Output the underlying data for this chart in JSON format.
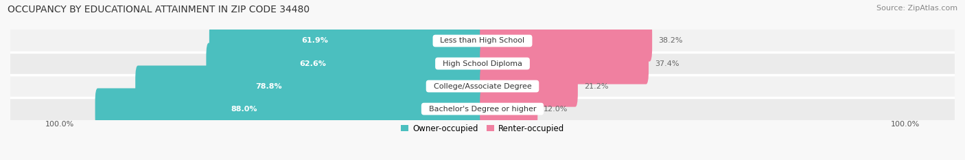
{
  "title": "OCCUPANCY BY EDUCATIONAL ATTAINMENT IN ZIP CODE 34480",
  "source": "Source: ZipAtlas.com",
  "categories": [
    "Less than High School",
    "High School Diploma",
    "College/Associate Degree",
    "Bachelor's Degree or higher"
  ],
  "owner_pct": [
    61.9,
    62.6,
    78.8,
    88.0
  ],
  "renter_pct": [
    38.2,
    37.4,
    21.2,
    12.0
  ],
  "owner_color": "#4bbfbf",
  "renter_color": "#f080a0",
  "row_bg_colors": [
    "#f0f0f0",
    "#e8e8e8",
    "#f0f0f0",
    "#e8e8e8"
  ],
  "title_fontsize": 10,
  "source_fontsize": 8,
  "label_fontsize": 8,
  "pct_fontsize": 8,
  "legend_fontsize": 8.5,
  "axis_label": "100.0%"
}
